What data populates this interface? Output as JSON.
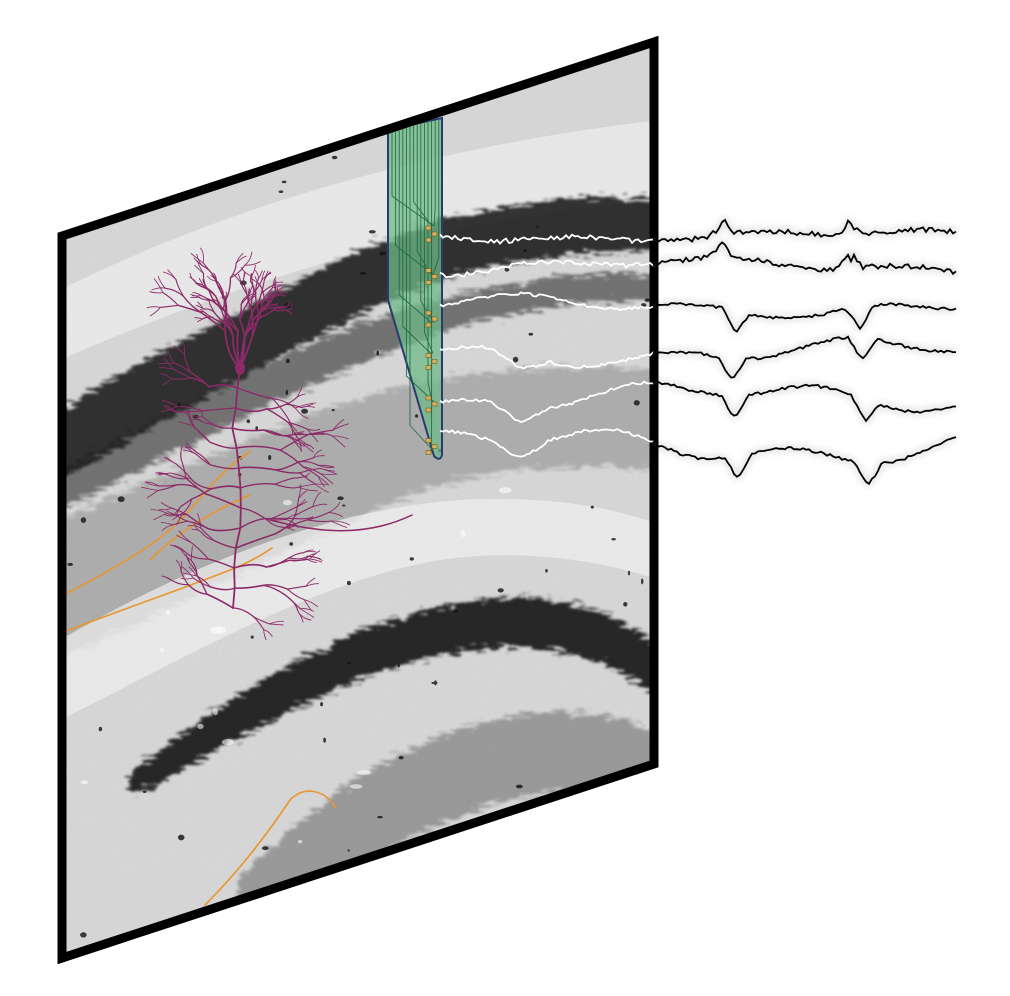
{
  "figure": {
    "panel": {
      "frame_color": "#000000",
      "tissue_base_color": "#d9d9d9",
      "dark_layer_color": "#1e1e1e"
    },
    "neuron": {
      "icon": "pyramidal-neuron-icon",
      "color": "#8b2a66"
    },
    "axons": {
      "icon": "axon-fiber-icon",
      "color": "#e8962e"
    },
    "probe": {
      "icon": "silicon-probe-icon",
      "shank_color": "#6fb98a",
      "edge_color": "#2a3a6e",
      "contact_color": "#d8b25a",
      "channel_count": 6
    },
    "traces": {
      "icon": "voltage-trace-icon",
      "count": 6,
      "inside_color": "#ffffff",
      "outside_color": "#000000"
    }
  }
}
